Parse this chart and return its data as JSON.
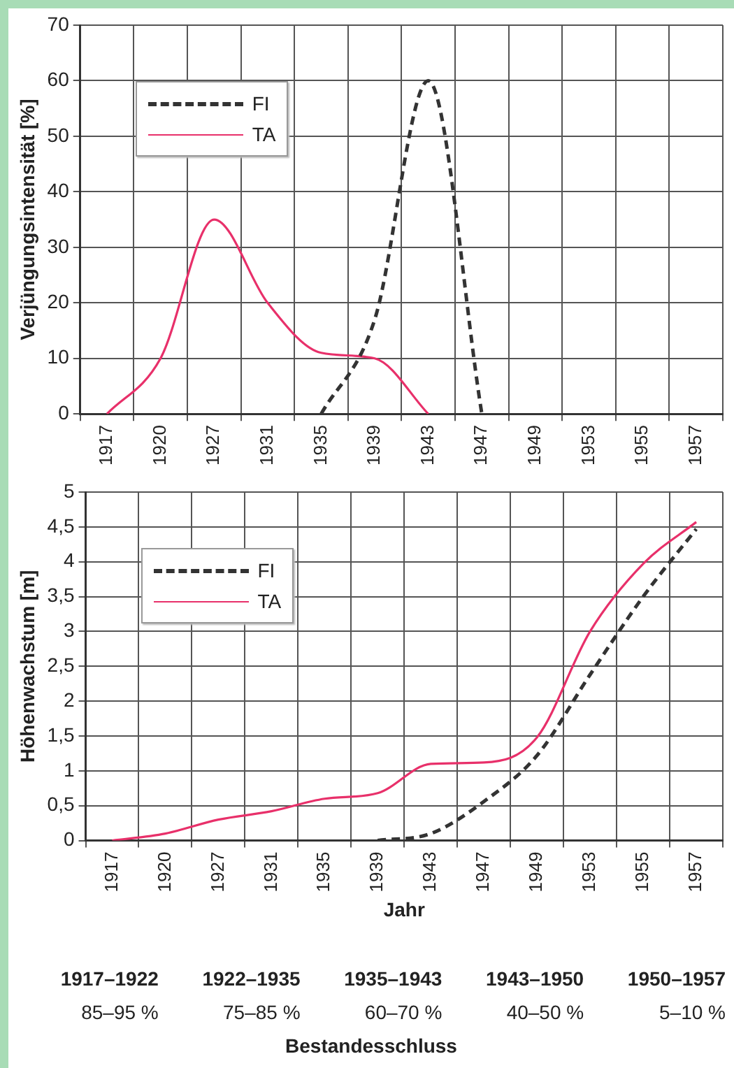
{
  "chart_data": [
    {
      "type": "line",
      "ylabel": "Verjüngungsintensität [%]",
      "categories": [
        "1917",
        "1920",
        "1927",
        "1931",
        "1935",
        "1939",
        "1943",
        "1947",
        "1949",
        "1953",
        "1955",
        "1957"
      ],
      "series": [
        {
          "name": "FI",
          "color": "#333333",
          "line_style": "dashed",
          "values": [
            null,
            null,
            null,
            null,
            0,
            17,
            60,
            0,
            null,
            null,
            null,
            null
          ]
        },
        {
          "name": "TA",
          "color": "#e8306a",
          "line_style": "solid",
          "values": [
            0,
            10,
            35,
            20,
            11,
            10,
            0,
            null,
            null,
            null,
            null,
            null
          ]
        }
      ],
      "ylim": [
        0,
        70
      ],
      "yticks": [
        0,
        10,
        20,
        30,
        40,
        50,
        60,
        70
      ],
      "grid": true,
      "legend": "top left",
      "marker": "none"
    },
    {
      "type": "line",
      "xlabel": "Jahr",
      "ylabel": "Höhenwachstum [m]",
      "categories": [
        "1917",
        "1920",
        "1927",
        "1931",
        "1935",
        "1939",
        "1943",
        "1947",
        "1949",
        "1953",
        "1955",
        "1957"
      ],
      "series": [
        {
          "name": "FI",
          "color": "#333333",
          "line_style": "dashed",
          "values": [
            null,
            null,
            null,
            null,
            null,
            0,
            0.1,
            0.56,
            1.22,
            2.38,
            3.5,
            4.47
          ]
        },
        {
          "name": "TA",
          "color": "#e8306a",
          "line_style": "solid",
          "values": [
            0,
            0.1,
            0.3,
            0.42,
            0.6,
            0.68,
            1.1,
            1.12,
            1.48,
            3.0,
            3.97,
            4.57
          ]
        }
      ],
      "ylim": [
        0,
        5
      ],
      "yticks": [
        0,
        {
          "value": 0.5,
          "label": "0,5"
        },
        1,
        {
          "value": 1.5,
          "label": "1,5"
        },
        2,
        {
          "value": 2.5,
          "label": "2,5"
        },
        3,
        {
          "value": 3.5,
          "label": "3,5"
        },
        4,
        {
          "value": 4.5,
          "label": "4,5"
        },
        5
      ],
      "grid": true,
      "legend": "top left",
      "marker": "none"
    },
    {
      "type": "other",
      "title": "Bestandesschluss",
      "annotations": [
        "1917–1922",
        "1922–1935",
        "1935–1943",
        "1943–1950",
        "1950–1957",
        "85–95 %",
        "75–85 %",
        "60–70 %",
        "40–50 %",
        "5–10 %"
      ]
    }
  ]
}
